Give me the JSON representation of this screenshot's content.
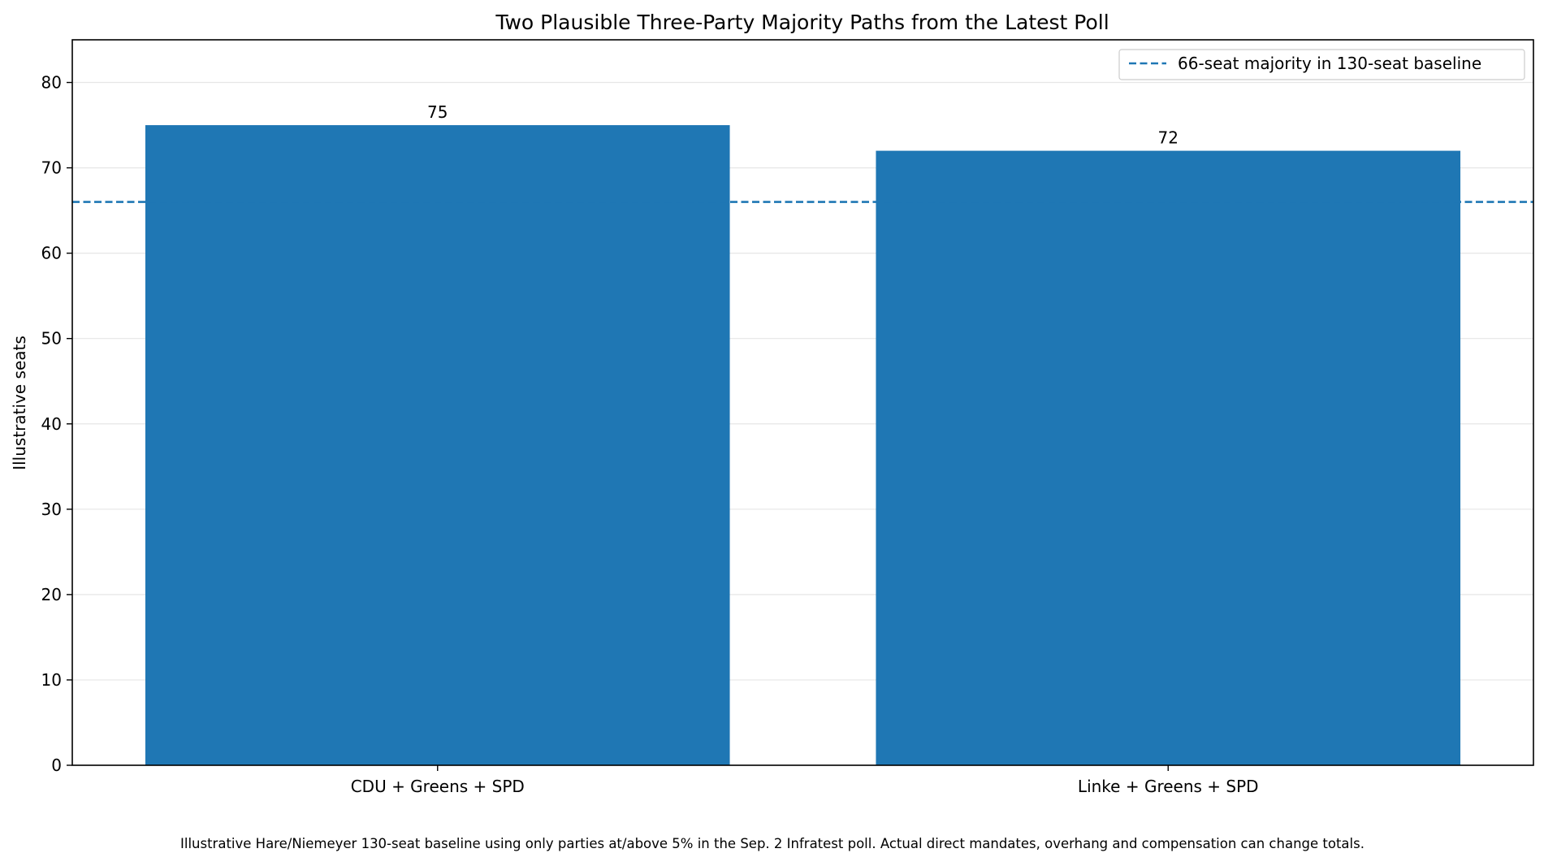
{
  "chart_data": {
    "type": "bar",
    "title": "Two Plausible Three-Party Majority Paths from the Latest Poll",
    "xlabel": "",
    "ylabel": "Illustrative seats",
    "categories": [
      "CDU + Greens + SPD",
      "Linke + Greens + SPD"
    ],
    "values": [
      75,
      72
    ],
    "value_labels": [
      "75",
      "72"
    ],
    "ylim": [
      0,
      85
    ],
    "yticks": [
      0,
      10,
      20,
      30,
      40,
      50,
      60,
      70,
      80
    ],
    "grid": "horizontal",
    "bar_color": "#1f77b4",
    "reference_line": {
      "value": 66,
      "style": "dashed",
      "color": "#1f77b4",
      "label": "66-seat majority in 130-seat baseline"
    },
    "legend": {
      "position": "top-right",
      "entries": [
        "66-seat majority in 130-seat baseline"
      ]
    },
    "footnote": "Illustrative Hare/Niemeyer 130-seat baseline using only parties at/above 5% in the Sep. 2 Infratest poll. Actual direct mandates, overhang and compensation can change totals."
  }
}
